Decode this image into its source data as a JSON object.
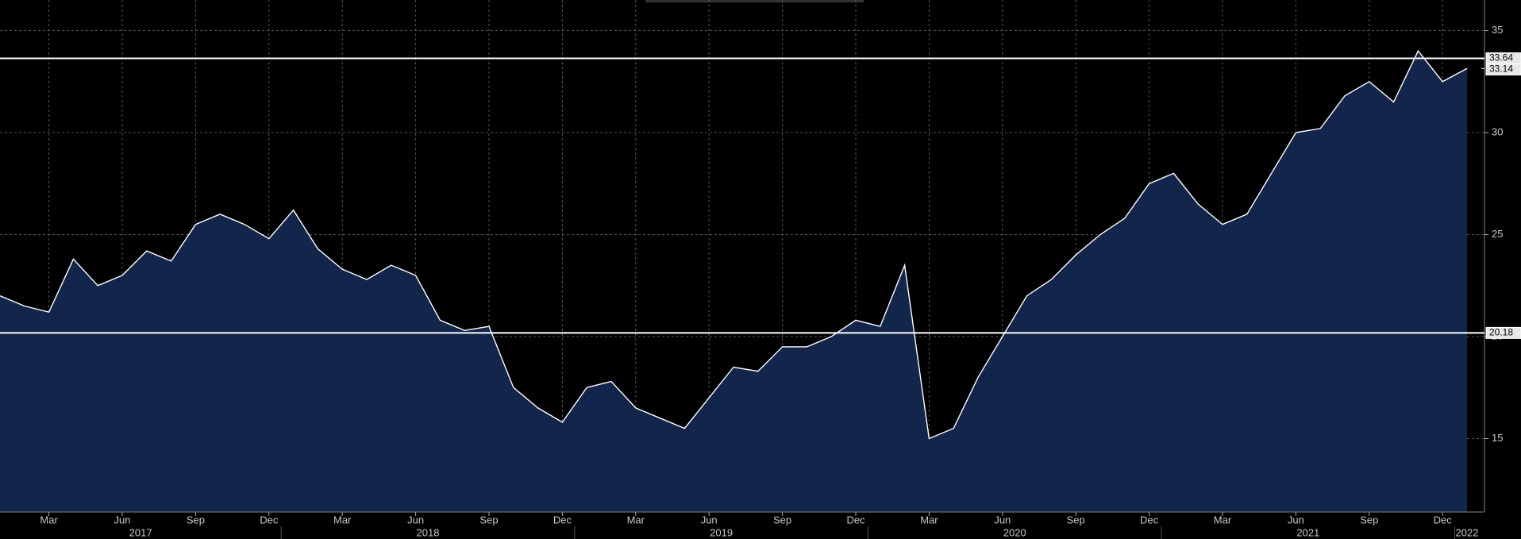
{
  "chart_data": {
    "type": "area",
    "categories": [
      "2017-01",
      "2017-02",
      "2017-03",
      "2017-04",
      "2017-05",
      "2017-06",
      "2017-07",
      "2017-08",
      "2017-09",
      "2017-10",
      "2017-11",
      "2017-12",
      "2018-01",
      "2018-02",
      "2018-03",
      "2018-04",
      "2018-05",
      "2018-06",
      "2018-07",
      "2018-08",
      "2018-09",
      "2018-10",
      "2018-11",
      "2018-12",
      "2019-01",
      "2019-02",
      "2019-03",
      "2019-04",
      "2019-05",
      "2019-06",
      "2019-07",
      "2019-08",
      "2019-09",
      "2019-10",
      "2019-11",
      "2019-12",
      "2020-01",
      "2020-02",
      "2020-03",
      "2020-04",
      "2020-05",
      "2020-06",
      "2020-07",
      "2020-08",
      "2020-09",
      "2020-10",
      "2020-11",
      "2020-12",
      "2021-01",
      "2021-02",
      "2021-03",
      "2021-04",
      "2021-05",
      "2021-06",
      "2021-07",
      "2021-08",
      "2021-09",
      "2021-10",
      "2021-11",
      "2021-12",
      "2022-01"
    ],
    "values": [
      22.0,
      21.5,
      21.2,
      23.8,
      22.5,
      23.0,
      24.2,
      23.7,
      25.5,
      26.0,
      25.5,
      24.8,
      26.2,
      24.3,
      23.3,
      22.8,
      23.5,
      23.0,
      20.8,
      20.3,
      20.5,
      17.5,
      16.5,
      15.8,
      17.5,
      17.8,
      16.5,
      16.0,
      15.5,
      17.0,
      18.5,
      18.3,
      19.5,
      19.5,
      20.0,
      20.8,
      20.5,
      23.5,
      15.0,
      15.5,
      18.0,
      20.0,
      22.0,
      22.8,
      24.0,
      25.0,
      25.8,
      27.5,
      28.0,
      26.5,
      25.5,
      26.0,
      28.0,
      30.0,
      30.2,
      31.8,
      32.5,
      31.5,
      34.0,
      32.5,
      33.14
    ],
    "line_color": "#ffffff",
    "fill_color": "#12254a",
    "ylim": [
      11.4,
      36.5
    ],
    "yticks": [
      15,
      20,
      25,
      30,
      35
    ],
    "grid": true,
    "xticks": [
      {
        "value": "2017-03",
        "label": "Mar"
      },
      {
        "value": "2017-06",
        "label": "Jun"
      },
      {
        "value": "2017-09",
        "label": "Sep"
      },
      {
        "value": "2017-12",
        "label": "Dec"
      },
      {
        "value": "2018-03",
        "label": "Mar"
      },
      {
        "value": "2018-06",
        "label": "Jun"
      },
      {
        "value": "2018-09",
        "label": "Sep"
      },
      {
        "value": "2018-12",
        "label": "Dec"
      },
      {
        "value": "2019-03",
        "label": "Mar"
      },
      {
        "value": "2019-06",
        "label": "Jun"
      },
      {
        "value": "2019-09",
        "label": "Sep"
      },
      {
        "value": "2019-12",
        "label": "Dec"
      },
      {
        "value": "2020-03",
        "label": "Mar"
      },
      {
        "value": "2020-06",
        "label": "Jun"
      },
      {
        "value": "2020-09",
        "label": "Sep"
      },
      {
        "value": "2020-12",
        "label": "Dec"
      },
      {
        "value": "2021-03",
        "label": "Mar"
      },
      {
        "value": "2021-06",
        "label": "Jun"
      },
      {
        "value": "2021-09",
        "label": "Sep"
      },
      {
        "value": "2021-12",
        "label": "Dec"
      }
    ],
    "years": [
      "2017",
      "2018",
      "2019",
      "2020",
      "2021",
      "2022"
    ],
    "hlines": [
      33.64,
      20.18
    ],
    "last_value": 33.14
  }
}
